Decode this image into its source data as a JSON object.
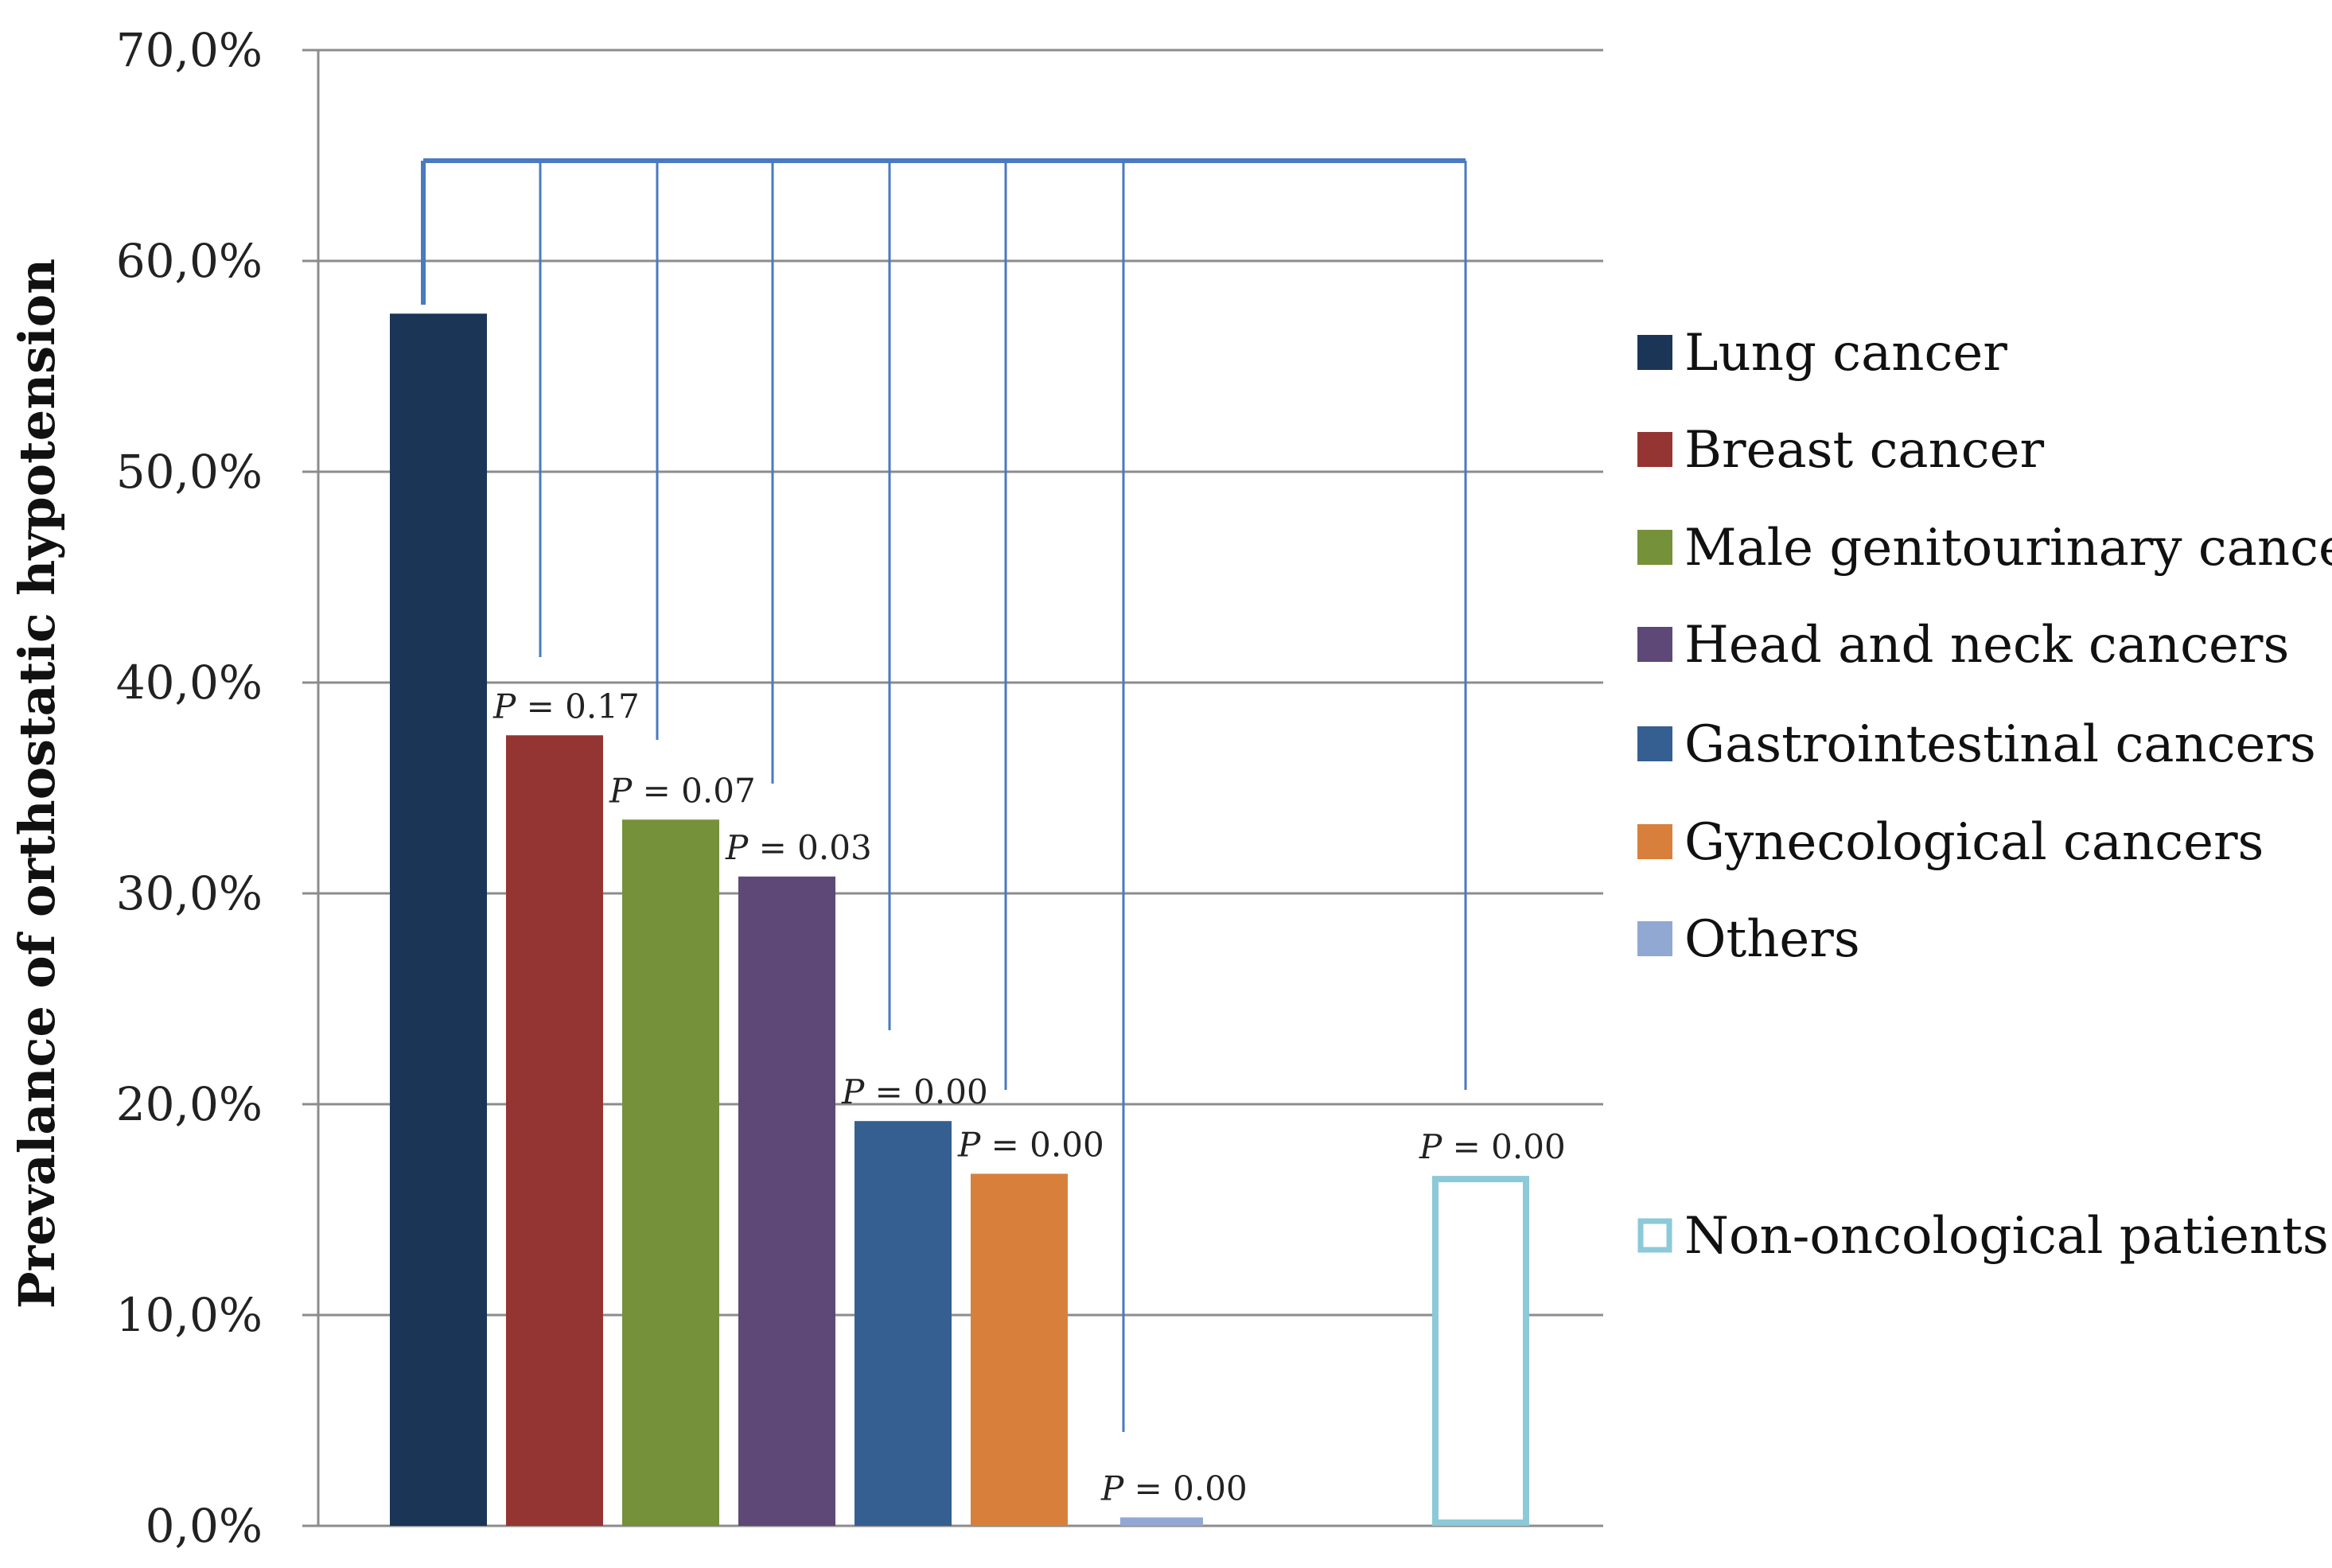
{
  "chart_data": {
    "type": "bar",
    "ylabel": "Prevalance of orthostatic hypotension",
    "ylim": [
      0,
      70
    ],
    "yticks": [
      "0,0%",
      "10,0%",
      "20,0%",
      "30,0%",
      "40,0%",
      "50,0%",
      "60,0%",
      "70,0%"
    ],
    "grid": true,
    "legend_position": "right",
    "reference": "Lung cancer",
    "series": [
      {
        "name": "Lung cancer",
        "value": 57.5,
        "color": "#1b3557",
        "p": ""
      },
      {
        "name": "Breast cancer",
        "value": 37.5,
        "color": "#953533",
        "p": "0.17"
      },
      {
        "name": "Male genitourinary cancers",
        "value": 33.5,
        "color": "#759139",
        "p": "0.07"
      },
      {
        "name": "Head and neck cancers",
        "value": 30.8,
        "color": "#5d4877",
        "p": "0.03"
      },
      {
        "name": "Gastrointestinal cancers",
        "value": 19.2,
        "color": "#355f91",
        "p": "0.00"
      },
      {
        "name": "Gynecological cancers",
        "value": 16.7,
        "color": "#d8803b",
        "p": "0.00"
      },
      {
        "name": "Others",
        "value": 0.4,
        "color": "#91a8d3",
        "p": "0.00"
      },
      {
        "name": "Non-oncological patients",
        "value": 16.6,
        "color": "#8cc9d9",
        "p": "0.00",
        "outline": true
      }
    ]
  }
}
